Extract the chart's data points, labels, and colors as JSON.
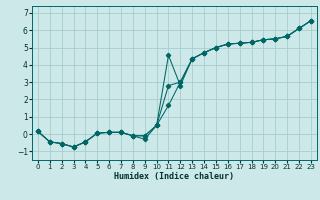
{
  "xlabel": "Humidex (Indice chaleur)",
  "bg_color": "#cce8e8",
  "grid_color": "#a8cccc",
  "line_color": "#006666",
  "xlim": [
    -0.5,
    23.5
  ],
  "ylim": [
    -1.5,
    7.4
  ],
  "xticks": [
    0,
    1,
    2,
    3,
    4,
    5,
    6,
    7,
    8,
    9,
    10,
    11,
    12,
    13,
    14,
    15,
    16,
    17,
    18,
    19,
    20,
    21,
    22,
    23
  ],
  "yticks": [
    -1,
    0,
    1,
    2,
    3,
    4,
    5,
    6,
    7
  ],
  "s1_x": [
    0,
    1,
    2,
    3,
    4,
    5,
    6,
    7,
    8,
    9,
    10,
    11,
    12,
    13,
    14,
    15,
    16,
    17,
    18,
    19,
    20,
    21,
    22,
    23
  ],
  "s1_y": [
    0.15,
    -0.45,
    -0.55,
    -0.75,
    -0.45,
    0.05,
    0.1,
    0.1,
    -0.1,
    -0.1,
    0.5,
    4.55,
    2.8,
    4.35,
    4.7,
    5.0,
    5.2,
    5.25,
    5.3,
    5.45,
    5.5,
    5.65,
    6.1,
    6.55
  ],
  "s2_x": [
    0,
    1,
    2,
    3,
    4,
    5,
    6,
    7,
    8,
    9,
    10,
    11,
    12,
    13,
    14,
    15,
    16,
    17,
    18,
    19,
    20,
    21,
    22,
    23
  ],
  "s2_y": [
    0.15,
    -0.45,
    -0.55,
    -0.75,
    -0.45,
    0.05,
    0.1,
    0.1,
    -0.1,
    -0.3,
    0.5,
    1.65,
    3.0,
    4.35,
    4.7,
    5.0,
    5.2,
    5.25,
    5.3,
    5.45,
    5.5,
    5.65,
    6.1,
    6.55
  ],
  "s3_x": [
    0,
    1,
    2,
    3,
    4,
    5,
    6,
    7,
    8,
    9,
    10,
    11,
    12,
    13,
    14,
    15,
    16,
    17,
    18,
    19,
    20,
    21,
    22,
    23
  ],
  "s3_y": [
    0.15,
    -0.45,
    -0.55,
    -0.75,
    -0.45,
    0.05,
    0.1,
    0.1,
    -0.1,
    -0.1,
    0.5,
    2.8,
    3.0,
    4.35,
    4.7,
    5.0,
    5.2,
    5.25,
    5.3,
    5.45,
    5.5,
    5.65,
    6.1,
    6.55
  ]
}
